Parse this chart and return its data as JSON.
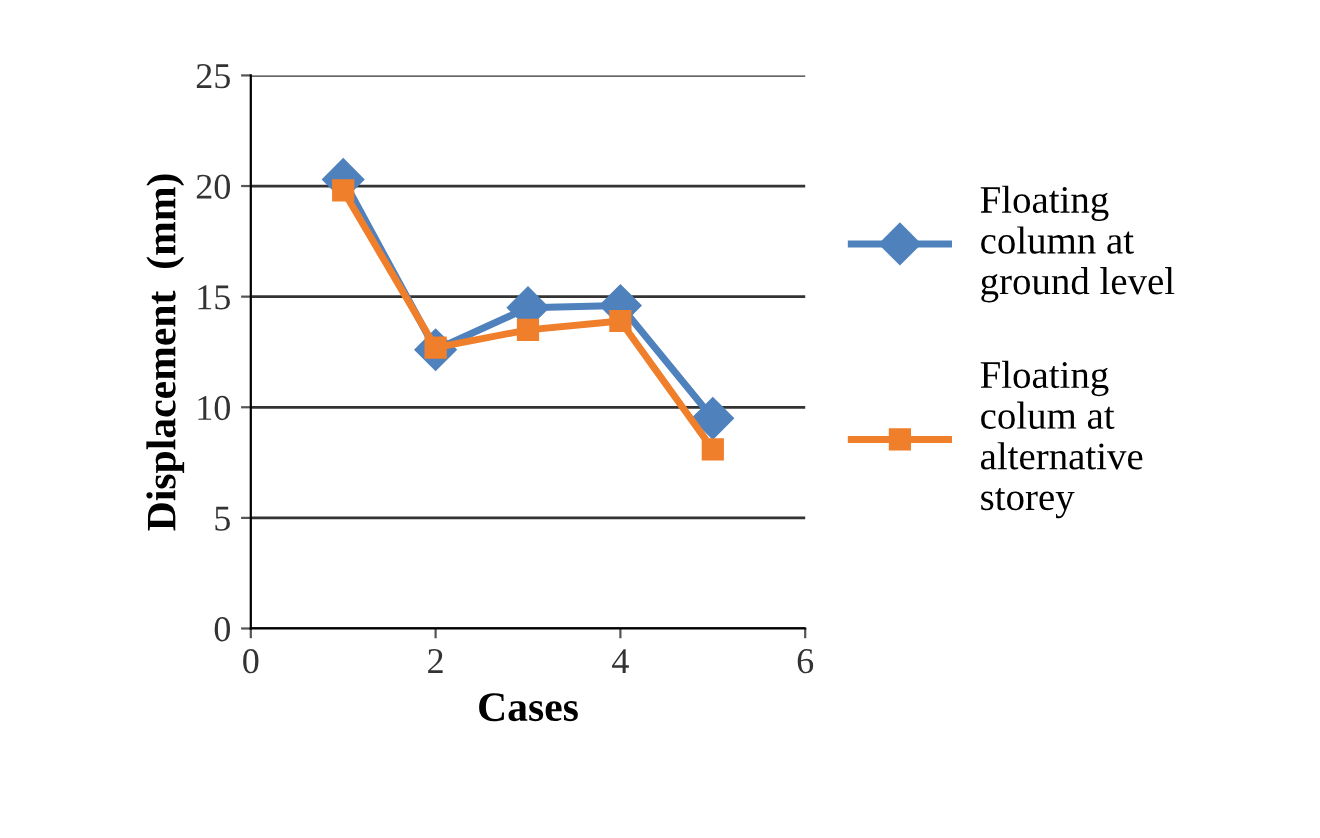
{
  "chart_data": {
    "type": "line",
    "xlabel": "Cases",
    "ylabel": "Displacement  (mm)",
    "x": [
      1,
      2,
      3,
      4,
      5
    ],
    "series": [
      {
        "name": "Floating\ncolumn at\nground level",
        "color": "#4f81bd",
        "marker": "diamond",
        "values": [
          20.3,
          12.6,
          14.5,
          14.6,
          9.5
        ]
      },
      {
        "name": "Floating\ncolum at\nalternative\nstorey",
        "color": "#f07f2c",
        "marker": "square",
        "values": [
          19.8,
          12.7,
          13.5,
          13.9,
          8.1
        ]
      }
    ],
    "xlim": [
      0,
      6
    ],
    "xticks": [
      0,
      2,
      4,
      6
    ],
    "ylim": [
      0,
      25
    ],
    "yticks": [
      0,
      5,
      10,
      15,
      20,
      25
    ],
    "grid": "y",
    "legend": "right",
    "line_style": "solid"
  }
}
